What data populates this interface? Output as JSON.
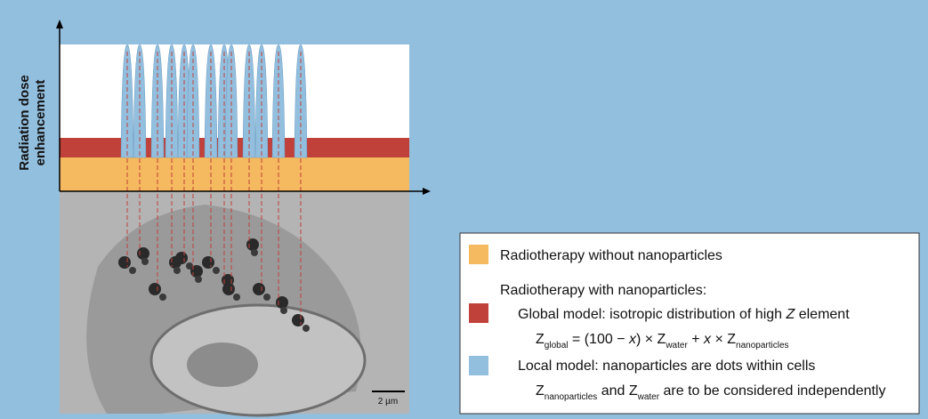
{
  "y_axis_label": [
    "Radiation dose",
    "enhancement"
  ],
  "scale_bar": "2 µm",
  "legend": {
    "without": "Radiotherapy without nanoparticles",
    "with": "Radiotherapy with nanoparticles:",
    "global": [
      {
        "text": "Global model: isotropic distribution of high "
      },
      {
        "text": "Z",
        "italic": true
      },
      {
        "text": " element"
      }
    ],
    "global_formula": [
      {
        "text": "Z"
      },
      {
        "text": "global",
        "sub": true
      },
      {
        "text": " = (100 − "
      },
      {
        "text": "x",
        "italic": true
      },
      {
        "text": ") × Z"
      },
      {
        "text": "water",
        "sub": true
      },
      {
        "text": " + "
      },
      {
        "text": "x",
        "italic": true
      },
      {
        "text": " × Z"
      },
      {
        "text": "nanoparticles",
        "sub": true
      }
    ],
    "local": "Local model: nanoparticles are dots within cells",
    "local_note": [
      {
        "text": "Z"
      },
      {
        "text": "nanoparticles",
        "sub": true
      },
      {
        "text": " and Z"
      },
      {
        "text": "water",
        "sub": true
      },
      {
        "text": " are to be considered independently"
      }
    ]
  }
}
